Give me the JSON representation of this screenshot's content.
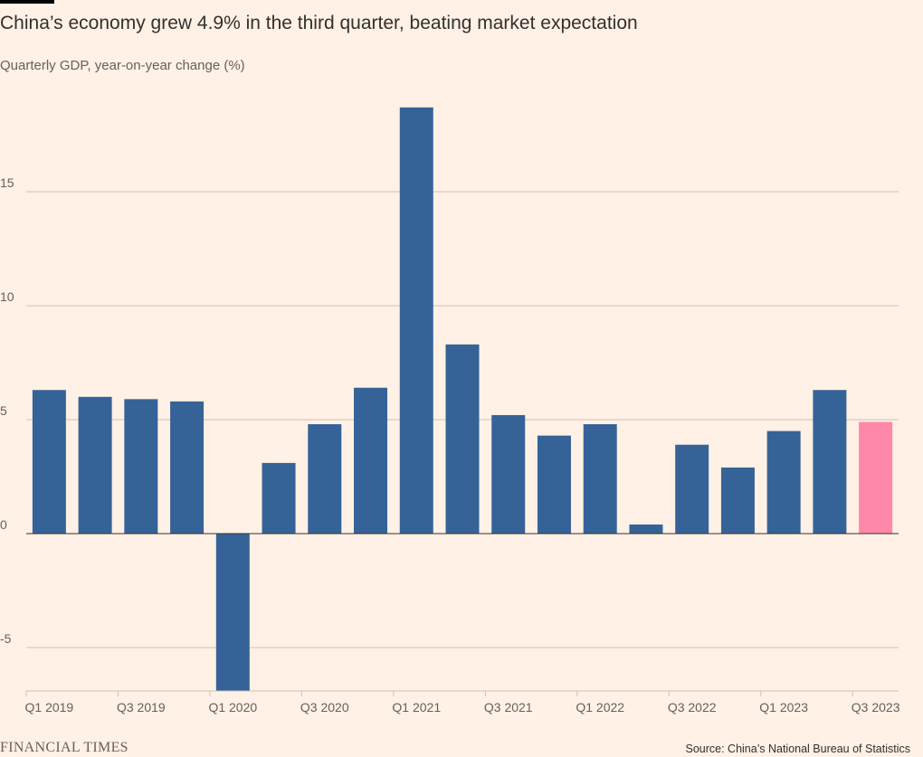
{
  "header": {
    "title": "China’s economy grew 4.9% in the third quarter, beating market expectation",
    "subtitle": "Quarterly GDP, year-on-year change (%)"
  },
  "footer": {
    "brand": "FINANCIAL TIMES",
    "source": "Source: China’s National Bureau of Statistics"
  },
  "colors": {
    "bar": "#356397",
    "highlight": "#ff87aa",
    "grid": "#ccc1b7",
    "zero_line": "#33302e"
  },
  "chart_data": {
    "type": "bar",
    "categories": [
      "Q1 2019",
      "Q2 2019",
      "Q3 2019",
      "Q4 2019",
      "Q1 2020",
      "Q2 2020",
      "Q3 2020",
      "Q4 2020",
      "Q1 2021",
      "Q2 2021",
      "Q3 2021",
      "Q4 2021",
      "Q1 2022",
      "Q2 2022",
      "Q3 2022",
      "Q4 2022",
      "Q1 2023",
      "Q2 2023",
      "Q3 2023"
    ],
    "values": [
      6.3,
      6.0,
      5.9,
      5.8,
      -6.9,
      3.1,
      4.8,
      6.4,
      18.7,
      8.3,
      5.2,
      4.3,
      4.8,
      0.4,
      3.9,
      2.9,
      4.5,
      6.3,
      4.9
    ],
    "highlight_index": 18,
    "x_tick_labels": [
      "Q1 2019",
      "Q3 2019",
      "Q1 2020",
      "Q3 2020",
      "Q1 2021",
      "Q3 2021",
      "Q1 2022",
      "Q3 2022",
      "Q1 2023",
      "Q3 2023"
    ],
    "y_ticks": [
      -5,
      0,
      5,
      10,
      15
    ],
    "y_tick_labels": [
      "-5",
      "0",
      "5",
      "10",
      "15"
    ],
    "ylim": [
      -6.9,
      18.7
    ],
    "xlabel": "",
    "ylabel": "",
    "grid": true
  }
}
